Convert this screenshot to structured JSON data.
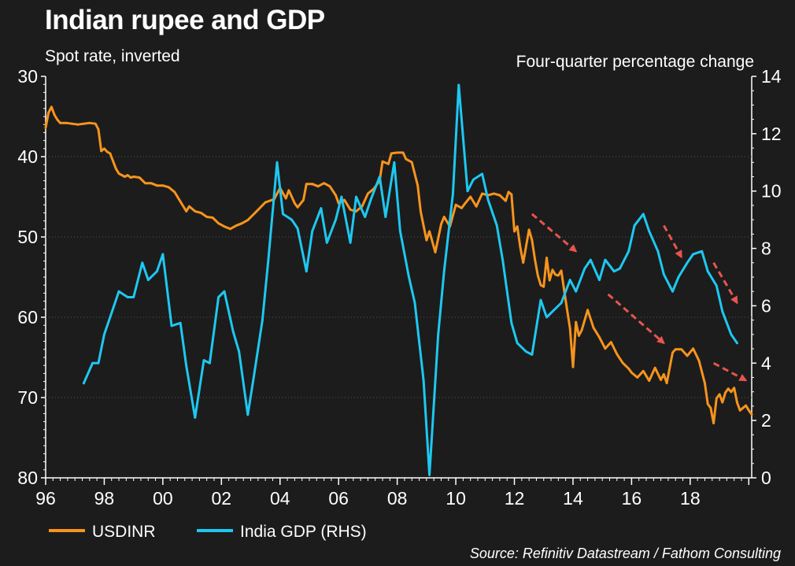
{
  "chart_data": {
    "type": "line",
    "title": "Indian rupee and GDP",
    "left_axis_label": "Spot rate, inverted",
    "right_axis_label": "Four-quarter percentage change",
    "source": "Source: Refinitiv Datastream / Fathom Consulting",
    "x_ticks": [
      "96",
      "98",
      "00",
      "02",
      "04",
      "06",
      "08",
      "10",
      "12",
      "14",
      "16",
      "18"
    ],
    "x_tick_values": [
      1996,
      1998,
      2000,
      2002,
      2004,
      2006,
      2008,
      2010,
      2012,
      2014,
      2016,
      2018
    ],
    "xlim": [
      1996,
      2020.1
    ],
    "ylim_left": [
      30,
      80
    ],
    "left_inverted": true,
    "left_ticks": [
      "30",
      "40",
      "50",
      "60",
      "70",
      "80"
    ],
    "ylim_right": [
      0,
      14
    ],
    "right_ticks": [
      "0",
      "2",
      "4",
      "6",
      "8",
      "10",
      "12",
      "14"
    ],
    "series": [
      {
        "name": "USDINR",
        "axis": "left",
        "color": "#f7941d",
        "x": [
          1996.0,
          1996.1,
          1996.2,
          1996.3,
          1996.4,
          1996.5,
          1996.7,
          1996.9,
          1997.1,
          1997.3,
          1997.5,
          1997.7,
          1997.8,
          1997.9,
          1998.0,
          1998.1,
          1998.2,
          1998.4,
          1998.5,
          1998.7,
          1998.8,
          1998.9,
          1999.0,
          1999.2,
          1999.4,
          1999.6,
          1999.8,
          2000.0,
          2000.2,
          2000.4,
          2000.6,
          2000.8,
          2000.9,
          2001.1,
          2001.3,
          2001.5,
          2001.7,
          2001.9,
          2002.1,
          2002.3,
          2002.5,
          2002.7,
          2002.9,
          2003.2,
          2003.5,
          2003.8,
          2004.0,
          2004.2,
          2004.3,
          2004.5,
          2004.6,
          2004.8,
          2004.9,
          2005.1,
          2005.3,
          2005.5,
          2005.7,
          2005.9,
          2006.0,
          2006.2,
          2006.4,
          2006.6,
          2006.8,
          2007.0,
          2007.2,
          2007.4,
          2007.5,
          2007.7,
          2007.8,
          2008.0,
          2008.2,
          2008.3,
          2008.5,
          2008.7,
          2008.8,
          2008.9,
          2009.0,
          2009.1,
          2009.3,
          2009.5,
          2009.6,
          2009.8,
          2010.0,
          2010.2,
          2010.3,
          2010.5,
          2010.7,
          2010.9,
          2011.1,
          2011.3,
          2011.5,
          2011.7,
          2011.8,
          2011.9,
          2012.0,
          2012.1,
          2012.2,
          2012.3,
          2012.5,
          2012.6,
          2012.7,
          2012.8,
          2012.9,
          2013.0,
          2013.1,
          2013.2,
          2013.3,
          2013.4,
          2013.5,
          2013.6,
          2013.7,
          2013.8,
          2013.9,
          2014.0,
          2014.1,
          2014.2,
          2014.3,
          2014.5,
          2014.7,
          2014.9,
          2015.1,
          2015.3,
          2015.5,
          2015.7,
          2015.9,
          2016.0,
          2016.2,
          2016.4,
          2016.6,
          2016.8,
          2017.0,
          2017.1,
          2017.2,
          2017.4,
          2017.5,
          2017.7,
          2017.9,
          2018.1,
          2018.3,
          2018.5,
          2018.6,
          2018.7,
          2018.8,
          2018.9,
          2019.0,
          2019.1,
          2019.2,
          2019.3,
          2019.4,
          2019.5,
          2019.6,
          2019.7,
          2019.9,
          2020.0,
          2020.1
        ],
        "values": [
          36.4,
          34.5,
          33.8,
          34.8,
          35.4,
          35.8,
          35.8,
          35.9,
          36.0,
          35.9,
          35.8,
          35.9,
          36.6,
          39.3,
          39.0,
          39.4,
          39.6,
          41.5,
          42.1,
          42.5,
          42.3,
          42.6,
          42.5,
          42.6,
          43.3,
          43.3,
          43.6,
          43.6,
          43.8,
          44.4,
          45.6,
          46.8,
          46.2,
          46.8,
          47.0,
          47.5,
          47.6,
          48.3,
          48.7,
          49.0,
          48.6,
          48.3,
          47.9,
          46.8,
          45.7,
          45.3,
          43.9,
          45.2,
          44.2,
          45.8,
          46.3,
          45.4,
          43.4,
          43.4,
          43.7,
          43.3,
          43.7,
          44.8,
          45.8,
          45.4,
          46.6,
          46.8,
          46.2,
          44.6,
          44.0,
          43.0,
          40.6,
          40.9,
          39.6,
          39.5,
          39.5,
          40.3,
          40.7,
          43.6,
          46.8,
          48.6,
          50.4,
          49.3,
          51.9,
          48.4,
          47.5,
          48.7,
          46.0,
          46.4,
          45.9,
          45.0,
          46.2,
          44.6,
          44.8,
          44.6,
          44.8,
          45.5,
          44.4,
          44.7,
          49.3,
          48.7,
          51.3,
          53.2,
          49.1,
          50.4,
          52.8,
          54.8,
          56.0,
          56.2,
          52.6,
          55.4,
          54.1,
          54.7,
          54.8,
          54.2,
          56.7,
          59.1,
          61.4,
          66.2,
          60.6,
          62.3,
          61.6,
          59.1,
          61.3,
          62.5,
          63.9,
          63.1,
          64.6,
          65.7,
          66.4,
          66.9,
          67.5,
          66.7,
          67.9,
          66.3,
          67.8,
          67.1,
          68.2,
          64.4,
          64.0,
          64.0,
          64.8,
          63.9,
          65.4,
          68.2,
          70.8,
          71.3,
          73.2,
          70.1,
          69.6,
          70.6,
          69.4,
          68.9,
          69.3,
          68.8,
          70.6,
          71.6,
          71.0,
          71.6,
          72.1
        ]
      },
      {
        "name": "India GDP (RHS)",
        "axis": "right",
        "color": "#1ec8f0",
        "x": [
          1997.3,
          1997.6,
          1997.8,
          1998.0,
          1998.3,
          1998.5,
          1998.8,
          1999.0,
          1999.3,
          1999.5,
          1999.8,
          2000.0,
          2000.3,
          2000.6,
          2000.8,
          2001.1,
          2001.4,
          2001.6,
          2001.9,
          2002.1,
          2002.4,
          2002.6,
          2002.9,
          2003.1,
          2003.4,
          2003.6,
          2003.9,
          2004.1,
          2004.4,
          2004.6,
          2004.9,
          2005.1,
          2005.4,
          2005.6,
          2005.9,
          2006.1,
          2006.4,
          2006.6,
          2006.9,
          2007.1,
          2007.4,
          2007.6,
          2007.9,
          2008.1,
          2008.4,
          2008.6,
          2008.9,
          2009.1,
          2009.4,
          2009.6,
          2009.9,
          2010.1,
          2010.4,
          2010.6,
          2010.9,
          2011.1,
          2011.4,
          2011.6,
          2011.9,
          2012.1,
          2012.4,
          2012.6,
          2012.9,
          2013.1,
          2013.4,
          2013.6,
          2013.9,
          2014.1,
          2014.4,
          2014.6,
          2014.9,
          2015.1,
          2015.4,
          2015.6,
          2015.9,
          2016.1,
          2016.4,
          2016.6,
          2016.9,
          2017.1,
          2017.4,
          2017.6,
          2017.9,
          2018.1,
          2018.4,
          2018.6,
          2018.9,
          2019.1,
          2019.4,
          2019.6
        ],
        "values": [
          3.3,
          4.0,
          4.0,
          5.0,
          5.9,
          6.5,
          6.3,
          6.3,
          7.5,
          6.9,
          7.2,
          7.8,
          5.3,
          5.4,
          3.9,
          2.1,
          4.1,
          4.0,
          6.3,
          6.5,
          5.1,
          4.4,
          2.2,
          3.5,
          5.5,
          7.6,
          11.0,
          9.2,
          9.0,
          8.7,
          7.2,
          8.6,
          9.4,
          8.2,
          9.0,
          9.8,
          8.2,
          9.8,
          9.1,
          9.7,
          10.5,
          9.1,
          11.0,
          8.6,
          7.0,
          6.1,
          3.4,
          0.1,
          5.0,
          7.2,
          9.9,
          13.7,
          10.0,
          10.4,
          10.6,
          9.7,
          8.8,
          7.6,
          5.4,
          4.7,
          4.4,
          4.3,
          6.2,
          5.6,
          5.9,
          6.1,
          6.9,
          6.5,
          7.3,
          7.6,
          6.9,
          7.6,
          7.2,
          7.3,
          7.9,
          8.8,
          9.2,
          8.6,
          7.9,
          7.1,
          6.5,
          7.0,
          7.5,
          7.8,
          7.9,
          7.2,
          6.7,
          5.8,
          5.0,
          4.7
        ]
      }
    ],
    "annotations": [
      {
        "type": "dashed-arrow",
        "color": "#e8544e",
        "from": [
          2012.6,
          9.2
        ],
        "to": [
          2014.1,
          7.9
        ]
      },
      {
        "type": "dashed-arrow",
        "color": "#e8544e",
        "from": [
          2015.2,
          6.4
        ],
        "to": [
          2017.1,
          4.7
        ]
      },
      {
        "type": "dashed-arrow",
        "color": "#e8544e",
        "from": [
          2017.1,
          8.8
        ],
        "to": [
          2017.7,
          7.7
        ]
      },
      {
        "type": "dashed-arrow",
        "color": "#e8544e",
        "from": [
          2018.8,
          7.5
        ],
        "to": [
          2019.6,
          6.1
        ]
      },
      {
        "type": "dashed-arrow",
        "color": "#e8544e",
        "from": [
          2018.8,
          4.0
        ],
        "to": [
          2019.9,
          3.4
        ]
      }
    ]
  }
}
